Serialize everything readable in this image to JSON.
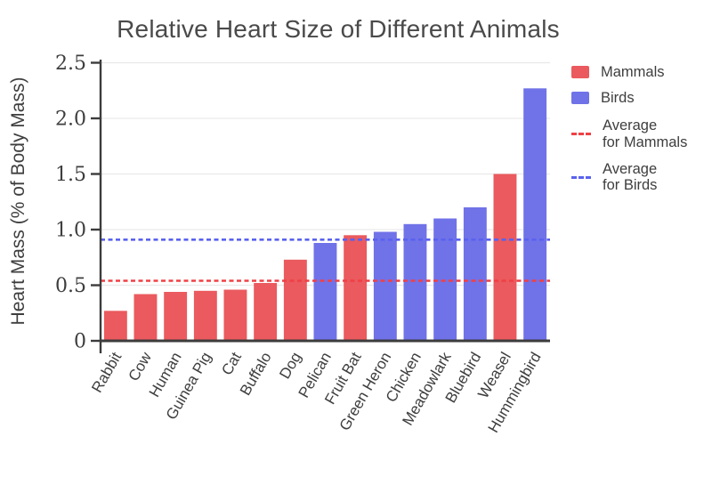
{
  "page": {
    "background": "#ffffff"
  },
  "title": "Relative Heart Size of Different Animals",
  "colors": {
    "mammal_bar": "#ea5a5e",
    "bird_bar": "#7072e8",
    "mammal_avg_line": "#ef4045",
    "bird_avg_line": "#5a62ee",
    "axis": "#3c3c3c",
    "grid": "#e9e9e9",
    "tick_text": "#3e3e3e",
    "title_text": "#4a4a4a"
  },
  "legend": {
    "items": [
      {
        "label": "Mammals",
        "marker": "swatch",
        "color_key": "mammal_bar"
      },
      {
        "label": "Birds",
        "marker": "swatch",
        "color_key": "bird_bar"
      },
      {
        "label": "Average\nfor Mammals",
        "marker": "dashed-line",
        "color_key": "mammal_avg_line"
      },
      {
        "label": "Average\nfor Birds",
        "marker": "dashed-line",
        "color_key": "bird_avg_line"
      }
    ]
  },
  "chart_data": {
    "type": "bar",
    "title": "Relative Heart Size of Different Animals",
    "xlabel": "",
    "ylabel": "Heart Mass (% of Body Mass)",
    "ylim": [
      0,
      2.5
    ],
    "yticks": [
      0,
      0.5,
      1.0,
      1.5,
      2.0,
      2.5
    ],
    "ytick_labels": [
      "0",
      "0.5",
      "1.0",
      "1.5",
      "2.0",
      "2.5"
    ],
    "grid": true,
    "legend_position": "right",
    "categories": [
      "Rabbit",
      "Cow",
      "Human",
      "Guinea Pig",
      "Cat",
      "Buffalo",
      "Dog",
      "Pelican",
      "Fruit Bat",
      "Green Heron",
      "Chicken",
      "Meadowlark",
      "Bluebird",
      "Weasel",
      "Hummingbird"
    ],
    "values": [
      0.27,
      0.42,
      0.44,
      0.45,
      0.46,
      0.52,
      0.73,
      0.88,
      0.95,
      0.98,
      1.05,
      1.1,
      1.2,
      1.5,
      2.27
    ],
    "groups": [
      "mammal",
      "mammal",
      "mammal",
      "mammal",
      "mammal",
      "mammal",
      "mammal",
      "bird",
      "mammal",
      "bird",
      "bird",
      "bird",
      "bird",
      "mammal",
      "bird"
    ],
    "series_legend": {
      "mammal": "Mammals",
      "bird": "Birds"
    },
    "reference_lines": [
      {
        "label": "Average for Mammals",
        "value": 0.54,
        "style": "dashed",
        "color_key": "mammal_avg_line"
      },
      {
        "label": "Average for Birds",
        "value": 0.91,
        "style": "dashed",
        "color_key": "bird_avg_line"
      }
    ]
  }
}
